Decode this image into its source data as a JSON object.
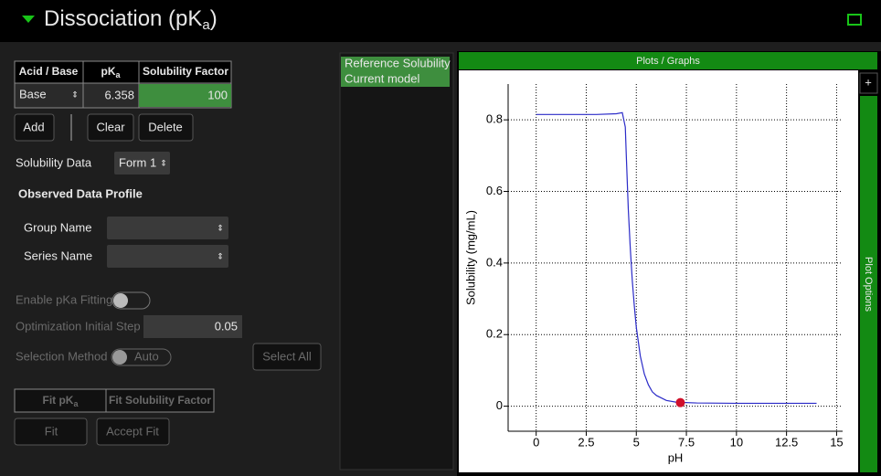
{
  "header": {
    "title": "Dissociation (pK",
    "title_sub": "a",
    "title_end": ")"
  },
  "table": {
    "headers": [
      "Acid / Base",
      "pK",
      "Solubility Factor"
    ],
    "header_sub": "a",
    "rows": [
      [
        "Base",
        "6.358",
        "100"
      ]
    ]
  },
  "buttons": {
    "add": "Add",
    "clear": "Clear",
    "delete": "Delete"
  },
  "solubility_data": {
    "label": "Solubility Data",
    "value": "Form 1"
  },
  "observed": {
    "title": "Observed Data Profile",
    "group_name": "Group Name",
    "series_name": "Series Name"
  },
  "fitting": {
    "enable": "Enable pKa Fitting",
    "step_label": "Optimization Initial Step",
    "step_value": "0.05",
    "method_label": "Selection Method",
    "method_value": "Auto",
    "select_all": "Select All",
    "tabs": [
      "Fit pK",
      "Fit Solubility Factor"
    ],
    "tab_sub": "a",
    "fit": "Fit",
    "accept": "Accept Fit"
  },
  "plot_panel": {
    "title": "Plots / Graphs",
    "options": "Plot Options",
    "add": "+"
  },
  "chart_data": {
    "type": "line",
    "x_label": "pH",
    "y_label": "Solubility (mg/mL)",
    "xlim": [
      -1.4,
      15.3
    ],
    "xticks": [
      0,
      2.5,
      5,
      7.5,
      10,
      12.5,
      15
    ],
    "ylim": [
      -0.07,
      0.9
    ],
    "yticks": [
      0,
      0.2,
      0.4,
      0.6,
      0.8
    ],
    "grid": true,
    "series": [
      {
        "name": "Reference Solubility",
        "type": "scatter",
        "color": "#d0102a",
        "x": [
          7.2
        ],
        "values": [
          0.01
        ]
      },
      {
        "name": "Current model",
        "type": "line",
        "color": "#2b2bc8",
        "x": [
          0,
          1,
          2,
          3,
          4,
          4.3,
          4.45,
          4.5,
          4.6,
          4.7,
          4.8,
          4.9,
          5,
          5.2,
          5.4,
          5.6,
          5.8,
          6,
          6.5,
          7,
          8,
          10,
          14
        ],
        "values": [
          0.815,
          0.815,
          0.815,
          0.815,
          0.817,
          0.82,
          0.78,
          0.7,
          0.55,
          0.44,
          0.35,
          0.28,
          0.22,
          0.14,
          0.09,
          0.06,
          0.04,
          0.03,
          0.016,
          0.011,
          0.009,
          0.008,
          0.008
        ]
      }
    ]
  }
}
